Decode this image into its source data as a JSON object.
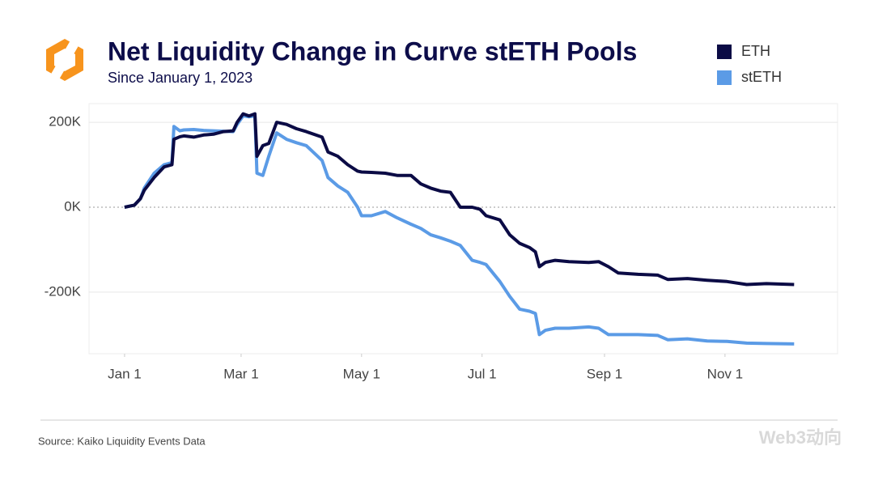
{
  "chart_data": {
    "type": "line",
    "title": "Net Liquidity Change in Curve stETH Pools",
    "subtitle": "Since January 1, 2023",
    "source": "Source: Kaiko Liquidity Events Data",
    "legend": "top-right",
    "grid": true,
    "x": [
      0,
      5,
      8,
      10,
      15,
      20,
      24,
      25,
      28,
      30,
      35,
      40,
      45,
      50,
      55,
      57,
      60,
      63,
      66,
      67,
      70,
      73,
      77,
      82,
      87,
      92,
      100,
      103,
      108,
      113,
      118,
      120,
      125,
      132,
      138,
      145,
      150,
      155,
      160,
      165,
      170,
      176,
      180,
      183,
      190,
      195,
      200,
      205,
      208,
      210,
      213,
      218,
      225,
      235,
      240,
      245,
      250,
      260,
      270,
      275,
      285,
      295,
      305,
      315,
      325,
      339
    ],
    "xlim": [
      -18,
      361
    ],
    "xticks": [
      {
        "value": 0,
        "label": "Jan 1"
      },
      {
        "value": 59,
        "label": "Mar 1"
      },
      {
        "value": 120,
        "label": "May 1"
      },
      {
        "value": 181,
        "label": "Jul 1"
      },
      {
        "value": 243,
        "label": "Sep 1"
      },
      {
        "value": 304,
        "label": "Nov 1"
      }
    ],
    "ylim": [
      -345000,
      244000
    ],
    "yticks": [
      {
        "value": -200000,
        "label": "-200K"
      },
      {
        "value": 0,
        "label": "0K"
      },
      {
        "value": 200000,
        "label": "200K"
      }
    ],
    "series": [
      {
        "name": "ETH",
        "color": "#0b0b45",
        "values": [
          0,
          5000,
          20000,
          40000,
          70000,
          95000,
          100000,
          160000,
          166000,
          168000,
          165000,
          170000,
          172000,
          178000,
          180000,
          200000,
          220000,
          215000,
          220000,
          120000,
          145000,
          150000,
          200000,
          195000,
          185000,
          178000,
          165000,
          130000,
          120000,
          100000,
          85000,
          83000,
          82000,
          80000,
          75000,
          75000,
          55000,
          45000,
          38000,
          35000,
          0,
          0,
          -5000,
          -20000,
          -30000,
          -65000,
          -85000,
          -95000,
          -105000,
          -140000,
          -130000,
          -125000,
          -128000,
          -130000,
          -128000,
          -140000,
          -155000,
          -158000,
          -160000,
          -170000,
          -168000,
          -172000,
          -175000,
          -182000,
          -180000,
          -182000
        ]
      },
      {
        "name": "stETH",
        "color": "#5b9be6",
        "values": [
          0,
          5000,
          20000,
          45000,
          80000,
          100000,
          105000,
          190000,
          180000,
          182000,
          183000,
          181000,
          180000,
          179000,
          178000,
          195000,
          215000,
          213000,
          215000,
          80000,
          75000,
          120000,
          175000,
          160000,
          152000,
          145000,
          110000,
          70000,
          50000,
          35000,
          0,
          -20000,
          -20000,
          -10000,
          -25000,
          -40000,
          -50000,
          -65000,
          -72000,
          -80000,
          -90000,
          -125000,
          -130000,
          -135000,
          -175000,
          -210000,
          -240000,
          -245000,
          -250000,
          -300000,
          -290000,
          -285000,
          -285000,
          -282000,
          -285000,
          -300000,
          -300000,
          -300000,
          -302000,
          -312000,
          -310000,
          -315000,
          -316000,
          -320000,
          -321000,
          -322000
        ]
      }
    ]
  },
  "watermark": "Web3动向"
}
